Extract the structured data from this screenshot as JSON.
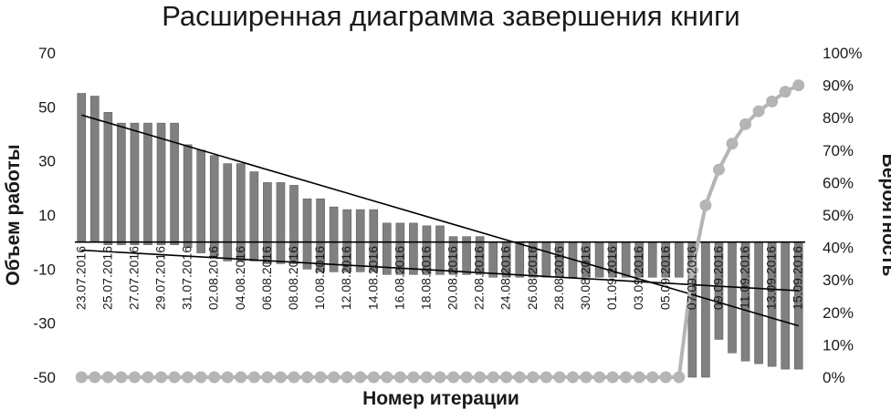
{
  "chart_data": {
    "type": "bar",
    "title": "Расширенная диаграмма завершения книги",
    "xlabel": "Номер итерации",
    "ylabel": "Объем работы",
    "y2label": "Вероятность",
    "ylim": [
      -50,
      70
    ],
    "yticks": [
      70,
      50,
      30,
      10,
      -10,
      -30,
      -50
    ],
    "y2lim": [
      0,
      100
    ],
    "y2ticks": [
      "100%",
      "90%",
      "80%",
      "70%",
      "60%",
      "50%",
      "40%",
      "30%",
      "20%",
      "10%",
      "0%"
    ],
    "x_tick_labels": [
      "23.07.2016",
      "25.07.2016",
      "27.07.2016",
      "29.07.2016",
      "31.07.2016",
      "02.08.2016",
      "04.08.2016",
      "06.08.2016",
      "08.08.2016",
      "10.08.2016",
      "12.08.2016",
      "14.08.2016",
      "16.08.2016",
      "18.08.2016",
      "20.08.2016",
      "22.08.2016",
      "24.08.2016",
      "26.08.2016",
      "28.08.2016",
      "30.08.2016",
      "01.09.2016",
      "03.09.2016",
      "05.09.2016",
      "07.09.2016",
      "09.09.2016",
      "11.09.2016",
      "13.09.2016",
      "15.09.2016"
    ],
    "categories_count": 55,
    "series": [
      {
        "kind": "bar-positive",
        "values": [
          55,
          54,
          48,
          44,
          44,
          44,
          44,
          44,
          36,
          34,
          32,
          29,
          29,
          26,
          22,
          22,
          21,
          16,
          16,
          13,
          12,
          12,
          12,
          7,
          7,
          7,
          6,
          6,
          2,
          2,
          2,
          0,
          0,
          0,
          0,
          0,
          0,
          0,
          0,
          0,
          0,
          0,
          0,
          0,
          0,
          0,
          0,
          0,
          0,
          0,
          0,
          0,
          0,
          0,
          0
        ]
      },
      {
        "kind": "bar-negative",
        "values": [
          0,
          0,
          -1,
          -1,
          -1,
          -1,
          -1,
          -1,
          -2,
          -4,
          -5,
          -7,
          -7,
          -7,
          -8,
          -8,
          -8,
          -10,
          -11,
          -11,
          -11,
          -11,
          -11,
          -12,
          -12,
          -12,
          -12,
          -12,
          -12,
          -12,
          -12,
          -13,
          -13,
          -13,
          -13,
          -13,
          -13,
          -13,
          -13,
          -13,
          -13,
          -13,
          -13,
          -13,
          -13,
          -13,
          -50,
          -50,
          -36,
          -41,
          -44,
          -45,
          -46,
          -47,
          -47
        ]
      },
      {
        "kind": "probability",
        "axis": "secondary",
        "values": [
          0,
          0,
          0,
          0,
          0,
          0,
          0,
          0,
          0,
          0,
          0,
          0,
          0,
          0,
          0,
          0,
          0,
          0,
          0,
          0,
          0,
          0,
          0,
          0,
          0,
          0,
          0,
          0,
          0,
          0,
          0,
          0,
          0,
          0,
          0,
          0,
          0,
          0,
          0,
          0,
          0,
          0,
          0,
          0,
          0,
          0,
          33,
          53,
          64,
          72,
          78,
          82,
          85,
          88,
          90
        ]
      },
      {
        "kind": "trend",
        "values": [
          47,
          -31
        ]
      },
      {
        "kind": "trend",
        "values": [
          -3,
          -18
        ]
      }
    ],
    "grid": false,
    "legend": "none",
    "colors": {
      "bars": "#808080",
      "bar_edge": "#606060",
      "probability": "#b5b5b5",
      "trend": "#000000",
      "text": "#1a1a1a"
    }
  }
}
